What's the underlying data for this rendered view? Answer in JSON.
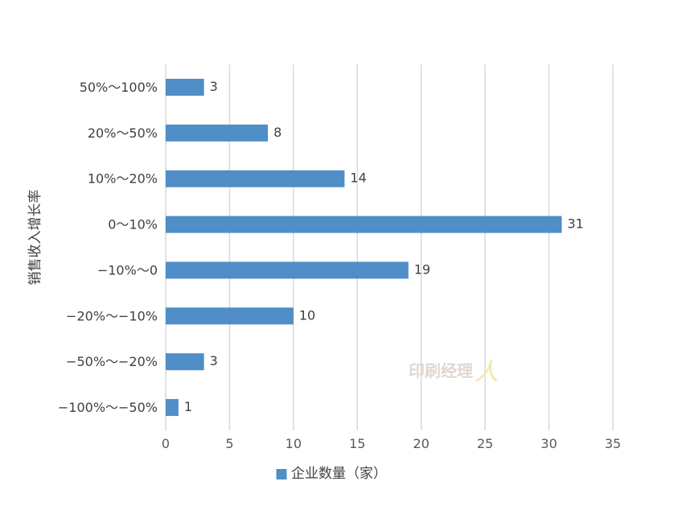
{
  "chart_data": {
    "type": "bar",
    "orientation": "horizontal",
    "categories": [
      "50%～100%",
      "20%～50%",
      "10%～20%",
      "0～10%",
      "−10%～0",
      "−20%～−10%",
      "−50%～−20%",
      "−100%～−50%"
    ],
    "series": [
      {
        "name": "企业数量（家）",
        "values": [
          3,
          8,
          14,
          31,
          19,
          10,
          3,
          1
        ],
        "color": "#4f8ec6"
      }
    ],
    "xlim": [
      0,
      35
    ],
    "xticks": [
      0,
      5,
      10,
      15,
      20,
      25,
      30,
      35
    ],
    "ylabel": "销售收入增长率",
    "xlabel": "",
    "title": "",
    "grid": "vertical",
    "legend": "bottom",
    "legend_marker": "■",
    "data_labels": true
  },
  "watermark": {
    "text": "印刷经理",
    "glyph": "人"
  }
}
